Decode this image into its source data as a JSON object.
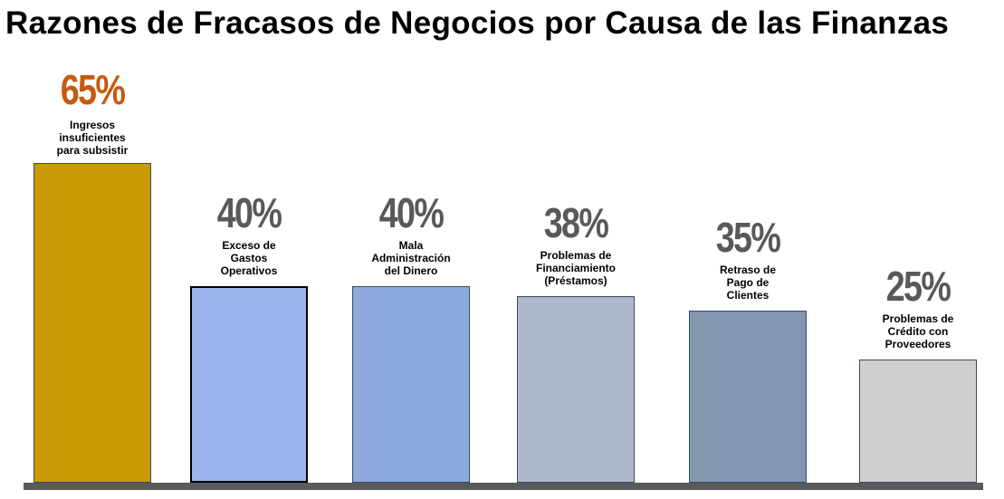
{
  "chart_data": {
    "type": "bar",
    "title": "Razones de Fracasos de Negocios por Causa de las Finanzas",
    "categories": [
      "Ingresos\ninsuficientes\npara subsistir",
      "Exceso  de\nGastos\nOperativos",
      "Mala\nAdministración\ndel Dinero",
      "Problemas de\nFinanciamiento\n(Préstamos)",
      "Retraso  de\nPago  de\nClientes",
      "Problemas de\nCrédito con\nProveedores"
    ],
    "values": [
      65,
      40,
      40,
      38,
      35,
      25
    ],
    "value_labels": [
      "65%",
      "40%",
      "40%",
      "38%",
      "35%",
      "25%"
    ],
    "ylim": [
      0,
      65
    ],
    "grid": false,
    "bar_colors": [
      "#C99A06",
      "#9AB4EB",
      "#8EA9DB",
      "#ADB9CA",
      "#8497B0",
      "#D0CECE"
    ],
    "label_colors": [
      "#C55A11",
      "#595959",
      "#595959",
      "#595959",
      "#595959",
      "#595959"
    ],
    "selected_index": 1
  }
}
